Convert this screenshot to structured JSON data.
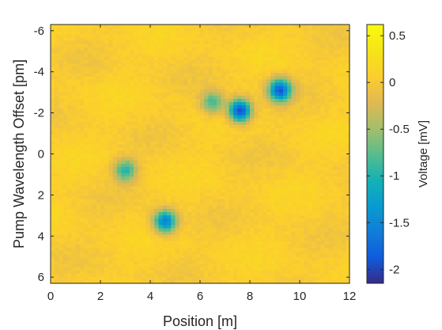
{
  "chart_data": {
    "type": "heatmap",
    "xlabel": "Position [m]",
    "ylabel": "Pump Wavelength Offset [pm]",
    "colorbar_label": "Voltage [mV]",
    "xlim": [
      0,
      12
    ],
    "ylim": [
      -6.3,
      6.3
    ],
    "y_axis_direction": "reversed (negative at top)",
    "clim": [
      -2.15,
      0.62
    ],
    "colormap": "parula",
    "x_ticks": [
      0,
      2,
      4,
      6,
      8,
      10,
      12
    ],
    "x_tick_labels": [
      "0",
      "2",
      "4",
      "6",
      "8",
      "10",
      "12"
    ],
    "y_ticks": [
      -6,
      -4,
      -2,
      0,
      2,
      4,
      6
    ],
    "y_tick_labels": [
      "-6",
      "-4",
      "-2",
      "0",
      "2",
      "4",
      "6"
    ],
    "colorbar_ticks": [
      0.5,
      0,
      -0.5,
      -1,
      -1.5,
      -2
    ],
    "colorbar_tick_labels": [
      "0.5",
      "0",
      "-0.5",
      "-1",
      "-1.5",
      "-2"
    ],
    "background_level_mV": 0.05,
    "features": [
      {
        "x": 3.0,
        "y": 0.8,
        "min_value_mV": -1.0
      },
      {
        "x": 4.6,
        "y": 3.3,
        "min_value_mV": -1.6
      },
      {
        "x": 6.5,
        "y": -2.5,
        "min_value_mV": -0.9
      },
      {
        "x": 7.6,
        "y": -2.1,
        "min_value_mV": -2.0
      },
      {
        "x": 9.2,
        "y": -3.1,
        "min_value_mV": -1.8
      }
    ]
  }
}
